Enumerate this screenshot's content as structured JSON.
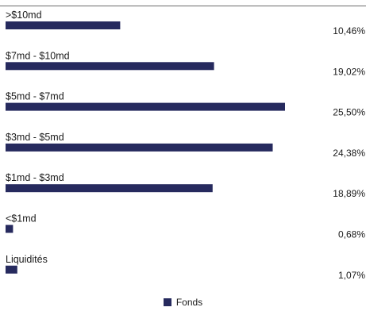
{
  "chart_data": {
    "type": "bar",
    "orientation": "horizontal",
    "categories": [
      ">$10md",
      "$7md - $10md",
      "$5md - $7md",
      "$3md - $5md",
      "$1md - $3md",
      "<$1md",
      "Liquidités"
    ],
    "series": [
      {
        "name": "Fonds",
        "values": [
          10.46,
          19.02,
          25.5,
          24.38,
          18.89,
          0.68,
          1.07
        ],
        "value_labels": [
          "10,46%",
          "19,02%",
          "25,50%",
          "24,38%",
          "18,89%",
          "0,68%",
          "1,07%"
        ]
      }
    ],
    "xlim": [
      0,
      25.5
    ],
    "grid": false,
    "legend_position": "bottom-center",
    "bar_color": "#262a5e"
  }
}
